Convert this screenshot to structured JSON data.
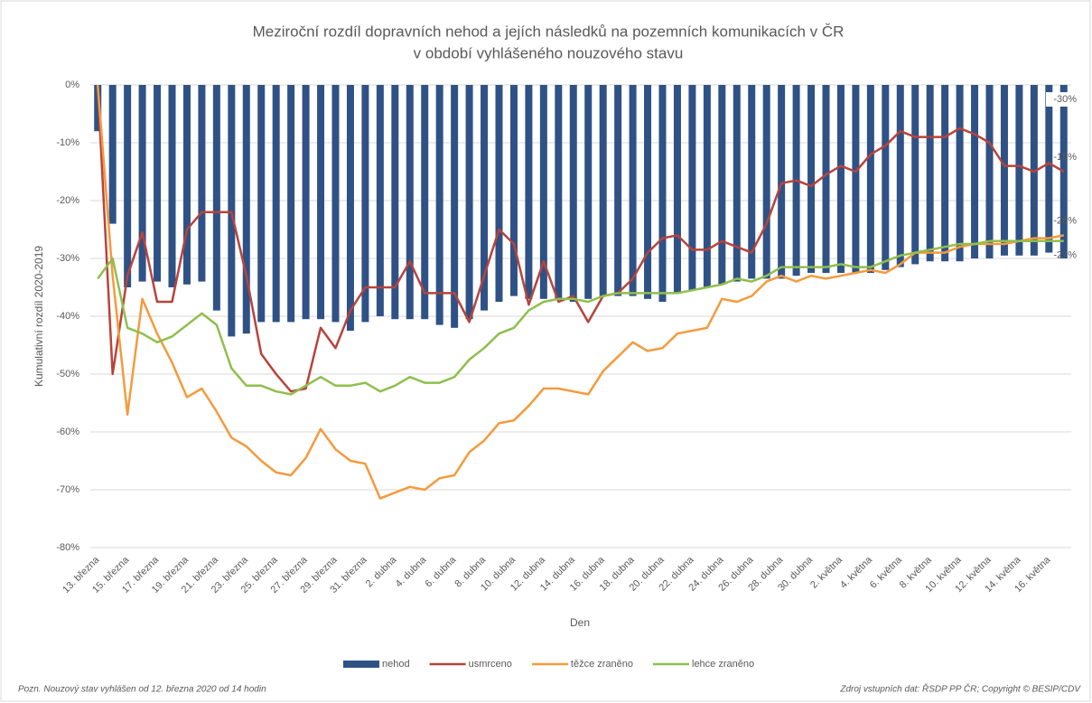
{
  "chart_data": {
    "type": "bar-line",
    "title": [
      "Meziroční rozdíl dopravních nehod a jejích následků na pozemních komunikacích v ČR",
      "v období vyhlášeného nouzového stavu"
    ],
    "x_label": "Den",
    "y_label": "Kumulativní rozdíl 2020-2019",
    "categories": [
      "13. března",
      null,
      "15. března",
      null,
      "17. března",
      null,
      "19. března",
      null,
      "21. března",
      null,
      "23. března",
      null,
      "25. března",
      null,
      "27. března",
      null,
      "29. března",
      null,
      "31. března",
      null,
      "2. dubna",
      null,
      "4. dubna",
      null,
      "6. dubna",
      null,
      "8. dubna",
      null,
      "10. dubna",
      null,
      "12. dubna",
      null,
      "14. dubna",
      null,
      "16. dubna",
      null,
      "18. dubna",
      null,
      "20. dubna",
      null,
      "22. dubna",
      null,
      "24. dubna",
      null,
      "26. dubna",
      null,
      "28. dubna",
      null,
      "30. dubna",
      null,
      "2. května",
      null,
      "4. května",
      null,
      "6. května",
      null,
      "8. května",
      null,
      "10. května",
      null,
      "12. května",
      null,
      "14. května",
      null,
      "16. května",
      null
    ],
    "ylim": [
      -80,
      0
    ],
    "yticks": [
      {
        "value": 0,
        "label": "0%"
      },
      {
        "value": -10,
        "label": "-10%"
      },
      {
        "value": -20,
        "label": "-20%"
      },
      {
        "value": -30,
        "label": "-30%"
      },
      {
        "value": -40,
        "label": "-40%"
      },
      {
        "value": -50,
        "label": "-50%"
      },
      {
        "value": -60,
        "label": "-60%"
      },
      {
        "value": -70,
        "label": "-70%"
      },
      {
        "value": -80,
        "label": "-80%"
      }
    ],
    "grid": true,
    "series": [
      {
        "name": "nehod",
        "kind": "bar",
        "color": "#2f5286",
        "values": [
          -8,
          -24,
          -35,
          -34,
          -34,
          -35,
          -34.5,
          -34,
          -39,
          -43.5,
          -43,
          -41,
          -41,
          -41,
          -40.5,
          -40.5,
          -41,
          -42.5,
          -41,
          -40,
          -40.5,
          -40.5,
          -40.5,
          -41.5,
          -42,
          -40.5,
          -39,
          -37.5,
          -36.5,
          -37,
          -37,
          -37,
          -37.5,
          -37,
          -36.5,
          -36.5,
          -36.5,
          -37,
          -37.5,
          -36,
          -35.5,
          -35,
          -34.5,
          -34,
          -33.5,
          -33.5,
          -33.5,
          -33,
          -32.5,
          -32.5,
          -32.5,
          -32.5,
          -32.5,
          -32,
          -31.5,
          -31,
          -30.5,
          -30.5,
          -30.5,
          -30,
          -30,
          -29.5,
          -29.5,
          -29.5,
          -29,
          -30
        ],
        "value_labels": [
          null,
          null,
          null,
          null,
          null,
          null,
          null,
          null,
          null,
          null,
          null,
          null,
          null,
          null,
          null,
          null,
          null,
          null,
          null,
          null,
          null,
          null,
          null,
          null,
          null,
          null,
          null,
          null,
          null,
          null,
          null,
          null,
          null,
          null,
          null,
          null,
          null,
          null,
          null,
          null,
          null,
          null,
          null,
          null,
          null,
          null,
          null,
          null,
          null,
          null,
          null,
          null,
          null,
          null,
          null,
          null,
          null,
          null,
          null,
          null,
          null,
          null,
          null,
          null,
          null,
          "-30%"
        ]
      },
      {
        "name": "usmrceno",
        "kind": "line",
        "color": "#b8433b",
        "values": [
          0,
          -50,
          -33,
          -25.5,
          -37.5,
          -37.5,
          -25,
          -22,
          -22,
          -22,
          -33,
          -46.5,
          -50,
          -53,
          -52.5,
          -42,
          -45.5,
          -39,
          -35,
          -35,
          -35,
          -30.5,
          -36,
          -36,
          -36,
          -41,
          -33,
          -25,
          -27.5,
          -38,
          -30.5,
          -37.5,
          -36.5,
          -41,
          -36.5,
          -36,
          -33.5,
          -29,
          -26.5,
          -26,
          -28.5,
          -28.5,
          -27,
          -28,
          -29,
          -24,
          -17,
          -16.5,
          -17.5,
          -15.5,
          -14,
          -15,
          -12,
          -10.5,
          -8,
          -9,
          -9,
          -9,
          -7.5,
          -8.5,
          -10,
          -14,
          -14,
          -15,
          -13.5,
          -15
        ],
        "value_labels": [
          null,
          null,
          null,
          null,
          null,
          null,
          null,
          null,
          null,
          null,
          null,
          null,
          null,
          null,
          null,
          null,
          null,
          null,
          null,
          null,
          null,
          null,
          null,
          null,
          null,
          null,
          null,
          null,
          null,
          null,
          null,
          null,
          null,
          null,
          null,
          null,
          null,
          null,
          null,
          null,
          null,
          null,
          null,
          null,
          null,
          null,
          null,
          null,
          null,
          null,
          null,
          null,
          null,
          null,
          null,
          null,
          null,
          null,
          null,
          null,
          null,
          null,
          null,
          null,
          null,
          "-15%"
        ]
      },
      {
        "name": "těžce zraněno",
        "kind": "line",
        "color": "#f59a3c",
        "values": [
          0,
          -33,
          -57,
          -37,
          -43,
          -48,
          -54,
          -52.5,
          -56.5,
          -61,
          -62.5,
          -65,
          -67,
          -67.5,
          -64.5,
          -59.5,
          -63,
          -65,
          -65.5,
          -71.5,
          -70.5,
          -69.5,
          -70,
          -68,
          -67.5,
          -63.5,
          -61.5,
          -58.5,
          -58,
          -55.5,
          -52.5,
          -52.5,
          -53,
          -53.5,
          -49.5,
          -47,
          -44.5,
          -46,
          -45.5,
          -43,
          -42.5,
          -42,
          -37,
          -37.5,
          -36.5,
          -34,
          -33,
          -34,
          -33,
          -33.5,
          -33,
          -32.5,
          -32,
          -32.5,
          -31,
          -29,
          -29,
          -29,
          -28,
          -27.5,
          -27.5,
          -27.5,
          -27,
          -26.5,
          -26.5,
          -26
        ],
        "value_labels": [
          null,
          null,
          null,
          null,
          null,
          null,
          null,
          null,
          null,
          null,
          null,
          null,
          null,
          null,
          null,
          null,
          null,
          null,
          null,
          null,
          null,
          null,
          null,
          null,
          null,
          null,
          null,
          null,
          null,
          null,
          null,
          null,
          null,
          null,
          null,
          null,
          null,
          null,
          null,
          null,
          null,
          null,
          null,
          null,
          null,
          null,
          null,
          null,
          null,
          null,
          null,
          null,
          null,
          null,
          null,
          null,
          null,
          null,
          null,
          null,
          null,
          null,
          null,
          null,
          null,
          "-26%"
        ]
      },
      {
        "name": "lehce zraněno",
        "kind": "line",
        "color": "#8fbf4d",
        "values": [
          -33.5,
          -30,
          -42,
          -43,
          -44.5,
          -43.5,
          -41.5,
          -39.5,
          -41.5,
          -49,
          -52,
          -52,
          -53,
          -53.5,
          -52,
          -50.5,
          -52,
          -52,
          -51.5,
          -53,
          -52,
          -50.5,
          -51.5,
          -51.5,
          -50.5,
          -47.5,
          -45.5,
          -43,
          -42,
          -39,
          -37.5,
          -37,
          -37,
          -37.5,
          -36.5,
          -36,
          -36,
          -36,
          -36,
          -36,
          -35.5,
          -35,
          -34.5,
          -33.5,
          -34,
          -33,
          -31.5,
          -31.5,
          -31.5,
          -31.5,
          -31,
          -31.5,
          -31.5,
          -30.5,
          -29.5,
          -29,
          -28.5,
          -28,
          -27.5,
          -27.5,
          -27,
          -27,
          -27,
          -27,
          -27,
          -27
        ],
        "value_labels": [
          null,
          null,
          null,
          null,
          null,
          null,
          null,
          null,
          null,
          null,
          null,
          null,
          null,
          null,
          null,
          null,
          null,
          null,
          null,
          null,
          null,
          null,
          null,
          null,
          null,
          null,
          null,
          null,
          null,
          null,
          null,
          null,
          null,
          null,
          null,
          null,
          null,
          null,
          null,
          null,
          null,
          null,
          null,
          null,
          null,
          null,
          null,
          null,
          null,
          null,
          null,
          null,
          null,
          null,
          null,
          null,
          null,
          null,
          null,
          null,
          null,
          null,
          null,
          null,
          null,
          "-27%"
        ]
      }
    ],
    "notes": [
      "Pozn. Nouzový stav vyhlášen od 12. března 2020 od 14 hodin",
      "Zdroj vstupních dat: ŘSDP PP ČR; Copyright © BESIP/CDV"
    ]
  }
}
